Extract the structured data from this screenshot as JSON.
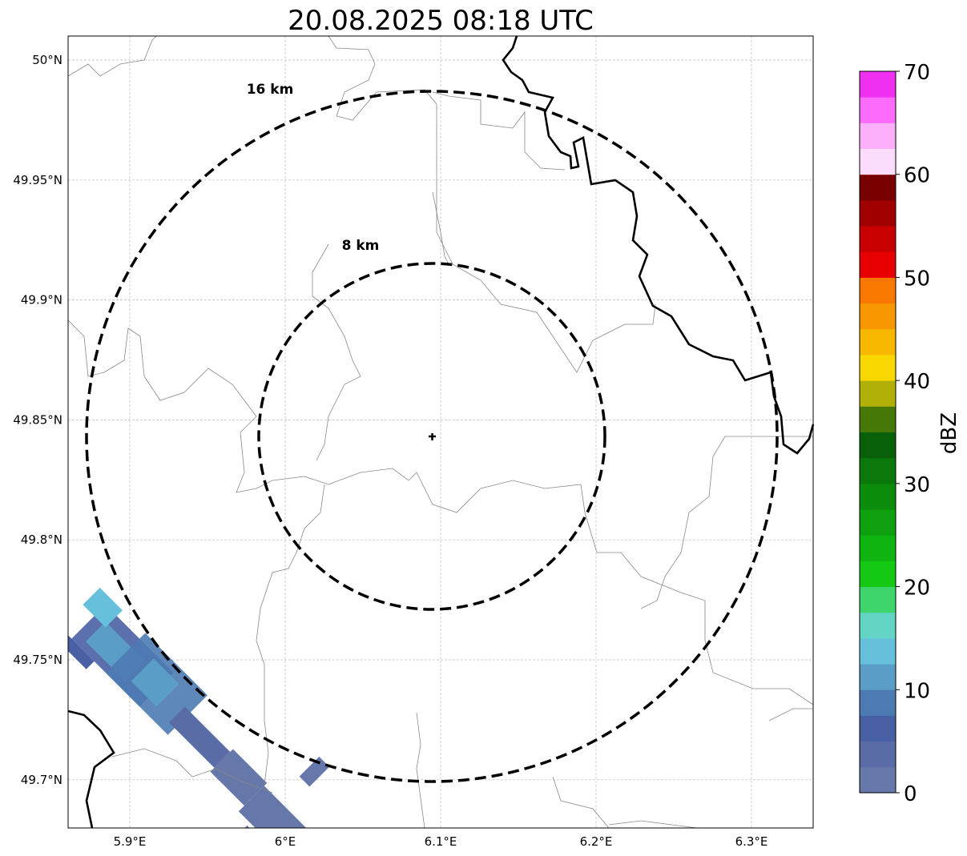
{
  "title": "20.08.2025 08:18 UTC",
  "map": {
    "lat_ticks": [
      {
        "value": 50.0,
        "label": "50°N"
      },
      {
        "value": 49.95,
        "label": "49.95°N"
      },
      {
        "value": 49.9,
        "label": "49.9°N"
      },
      {
        "value": 49.85,
        "label": "49.85°N"
      },
      {
        "value": 49.8,
        "label": "49.8°N"
      },
      {
        "value": 49.75,
        "label": "49.75°N"
      },
      {
        "value": 49.7,
        "label": "49.7°N"
      }
    ],
    "lon_ticks": [
      {
        "value": 5.9,
        "label": "5.9°E"
      },
      {
        "value": 6.0,
        "label": "6°E"
      },
      {
        "value": 6.1,
        "label": "6.1°E"
      },
      {
        "value": 6.2,
        "label": "6.2°E"
      },
      {
        "value": 6.3,
        "label": "6.3°E"
      }
    ],
    "range_rings": [
      {
        "km": 8,
        "label": "8 km"
      },
      {
        "km": 16,
        "label": "16 km"
      }
    ]
  },
  "colorbar": {
    "label": "dBZ",
    "min": 0,
    "max": 70,
    "step": 2.5,
    "ticks": [
      "0",
      "10",
      "20",
      "30",
      "40",
      "50",
      "60",
      "70"
    ],
    "colors": [
      "#6677aa",
      "#5a6ca6",
      "#4a60a4",
      "#4c7ab2",
      "#5a9ec8",
      "#66c0dc",
      "#64d4c4",
      "#3ed66c",
      "#14c814",
      "#10b410",
      "#0ea00e",
      "#0c8c0c",
      "#0a780a",
      "#086008",
      "#467808",
      "#b0b008",
      "#f8d800",
      "#f8b800",
      "#f89800",
      "#f87800",
      "#e80000",
      "#c80000",
      "#a00000",
      "#780000",
      "#fcdcfc",
      "#fcb0fc",
      "#fc6cfc",
      "#f030f0"
    ]
  }
}
